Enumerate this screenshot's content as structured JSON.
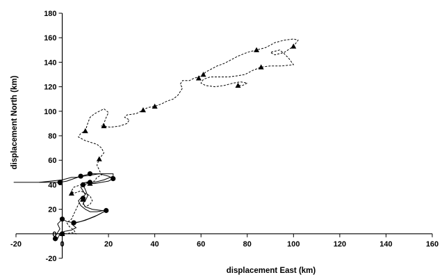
{
  "chart_data": {
    "type": "line",
    "xlabel": "displacement East (km)",
    "ylabel": "displacement  North  (km)",
    "xlim": [
      -20,
      160
    ],
    "ylim": [
      -20,
      180
    ],
    "x_ticks": [
      -20,
      0,
      20,
      40,
      60,
      80,
      100,
      120,
      140,
      160
    ],
    "y_ticks": [
      -20,
      0,
      20,
      40,
      60,
      80,
      100,
      120,
      140,
      160,
      180
    ],
    "x_tick_labels": [
      "-20",
      "0",
      "20",
      "40",
      "60",
      "80",
      "100",
      "120",
      "140",
      "160"
    ],
    "y_tick_labels": [
      "-20",
      "0",
      "20",
      "40",
      "60",
      "80",
      "100",
      "120",
      "140",
      "160",
      "180"
    ],
    "grid": false,
    "legend": "none",
    "series": [
      {
        "line_style": "dashed",
        "marker": "triangle",
        "color": "#000000",
        "points": [
          [
            -2,
            0
          ],
          [
            0,
            0
          ],
          [
            2,
            0
          ],
          [
            4,
            1
          ],
          [
            6,
            0
          ],
          [
            5,
            3
          ],
          [
            3,
            6
          ],
          [
            2,
            9
          ],
          [
            4,
            12
          ],
          [
            5,
            16
          ],
          [
            6,
            20
          ],
          [
            7,
            24
          ],
          [
            8,
            27
          ],
          [
            9,
            29
          ],
          [
            10,
            28
          ],
          [
            9,
            24
          ],
          [
            10,
            22
          ],
          [
            12,
            24
          ],
          [
            13,
            27
          ],
          [
            12,
            31
          ],
          [
            10,
            33
          ],
          [
            8,
            35
          ],
          [
            5,
            33
          ],
          [
            4,
            35
          ],
          [
            5,
            38
          ],
          [
            8,
            40
          ],
          [
            10,
            42
          ],
          [
            14,
            43
          ],
          [
            15,
            46
          ],
          [
            17,
            48
          ],
          [
            16,
            52
          ],
          [
            15,
            56
          ],
          [
            16,
            61
          ],
          [
            18,
            66
          ],
          [
            17,
            70
          ],
          [
            15,
            73
          ],
          [
            10,
            76
          ],
          [
            7,
            79
          ],
          [
            8,
            82
          ],
          [
            10,
            84
          ],
          [
            11,
            90
          ],
          [
            12,
            95
          ],
          [
            14,
            98
          ],
          [
            16,
            100
          ],
          [
            18,
            102
          ],
          [
            20,
            99
          ],
          [
            19,
            95
          ],
          [
            18,
            90
          ],
          [
            17,
            88
          ],
          [
            21,
            87
          ],
          [
            25,
            88
          ],
          [
            28,
            90
          ],
          [
            29,
            93
          ],
          [
            27,
            95
          ],
          [
            28,
            97
          ],
          [
            32,
            98
          ],
          [
            35,
            101
          ],
          [
            37,
            103
          ],
          [
            40,
            104
          ],
          [
            43,
            106
          ],
          [
            45,
            108
          ],
          [
            48,
            110
          ],
          [
            50,
            113
          ],
          [
            51,
            116
          ],
          [
            52,
            119
          ],
          [
            51,
            122
          ],
          [
            52,
            125
          ],
          [
            55,
            125
          ],
          [
            57,
            127
          ],
          [
            59,
            128
          ],
          [
            61,
            130
          ],
          [
            62,
            132
          ],
          [
            64,
            134
          ],
          [
            67,
            137
          ],
          [
            70,
            139
          ],
          [
            73,
            142
          ],
          [
            76,
            145
          ],
          [
            80,
            148
          ],
          [
            84,
            150
          ],
          [
            88,
            152
          ],
          [
            92,
            156
          ],
          [
            96,
            158
          ],
          [
            100,
            159
          ],
          [
            102,
            158
          ],
          [
            100,
            153
          ],
          [
            96,
            148
          ],
          [
            92,
            146
          ],
          [
            90,
            148
          ],
          [
            94,
            150
          ],
          [
            96,
            147
          ],
          [
            98,
            143
          ],
          [
            100,
            138
          ],
          [
            95,
            137
          ],
          [
            90,
            137
          ],
          [
            86,
            136
          ],
          [
            82,
            133
          ],
          [
            79,
            130
          ],
          [
            76,
            129
          ],
          [
            72,
            128
          ],
          [
            68,
            128
          ],
          [
            64,
            128
          ],
          [
            61,
            126
          ],
          [
            60,
            123
          ],
          [
            62,
            121
          ],
          [
            66,
            120
          ],
          [
            70,
            121
          ],
          [
            74,
            123
          ],
          [
            77,
            124
          ],
          [
            80,
            123
          ],
          [
            78,
            121
          ],
          [
            76,
            121
          ]
        ]
      },
      {
        "line_style": "solid",
        "marker": "circle",
        "color": "#000000",
        "points": [
          [
            -21,
            42
          ],
          [
            -10,
            42
          ],
          [
            -1,
            42
          ],
          [
            2,
            43
          ],
          [
            5,
            45
          ],
          [
            8,
            47
          ],
          [
            12,
            49
          ],
          [
            16,
            49
          ],
          [
            18,
            48
          ],
          [
            20,
            47
          ],
          [
            22,
            45
          ],
          [
            20,
            43
          ],
          [
            17,
            42
          ],
          [
            14,
            41
          ],
          [
            12,
            41
          ],
          [
            10,
            42
          ],
          [
            9,
            40
          ],
          [
            8,
            38
          ],
          [
            9,
            35
          ],
          [
            10,
            32
          ],
          [
            8,
            29
          ],
          [
            7,
            27
          ],
          [
            8,
            23
          ],
          [
            10,
            20
          ],
          [
            12,
            18
          ],
          [
            15,
            18
          ],
          [
            18,
            19
          ],
          [
            19,
            19
          ],
          [
            15,
            15
          ],
          [
            11,
            12
          ],
          [
            8,
            10
          ],
          [
            5,
            9
          ],
          [
            2,
            10
          ],
          [
            0,
            12
          ],
          [
            -2,
            8
          ],
          [
            -1,
            4
          ],
          [
            -2,
            1
          ],
          [
            -3,
            -2
          ]
        ]
      },
      {
        "line_style": "solid",
        "marker": "circle",
        "color": "#000000",
        "points": [
          [
            -10,
            42
          ],
          [
            0,
            44
          ],
          [
            4,
            46
          ],
          [
            6,
            46
          ],
          [
            9,
            47
          ],
          [
            13,
            48
          ],
          [
            16,
            49
          ],
          [
            22,
            49
          ],
          [
            22,
            47
          ],
          [
            18,
            44
          ],
          [
            14,
            42
          ],
          [
            11,
            41
          ],
          [
            9,
            40
          ],
          [
            10,
            36
          ],
          [
            11,
            31
          ],
          [
            10,
            27
          ],
          [
            9,
            25
          ],
          [
            10,
            22
          ],
          [
            13,
            20
          ],
          [
            17,
            19
          ],
          [
            19,
            19
          ],
          [
            14,
            14
          ],
          [
            10,
            11
          ],
          [
            6,
            9
          ],
          [
            4,
            8
          ],
          [
            6,
            5
          ],
          [
            4,
            3
          ],
          [
            1,
            2
          ],
          [
            -1,
            0
          ],
          [
            -2,
            -4
          ]
        ]
      }
    ],
    "marker_points": {
      "triangles": [
        [
          0,
          0
        ],
        [
          9,
          28
        ],
        [
          12,
          41
        ],
        [
          4,
          33
        ],
        [
          16,
          61
        ],
        [
          10,
          84
        ],
        [
          18,
          88
        ],
        [
          35,
          101
        ],
        [
          40,
          104
        ],
        [
          59,
          127
        ],
        [
          61,
          130
        ],
        [
          76,
          121
        ],
        [
          84,
          150
        ],
        [
          86,
          136
        ],
        [
          100,
          153
        ]
      ],
      "circles": [
        [
          -1,
          42
        ],
        [
          8,
          47
        ],
        [
          12,
          49
        ],
        [
          22,
          45
        ],
        [
          12,
          42
        ],
        [
          9,
          40
        ],
        [
          9,
          29
        ],
        [
          19,
          19
        ],
        [
          0,
          12
        ],
        [
          5,
          9
        ],
        [
          -3,
          -4
        ],
        [
          0,
          0
        ]
      ]
    }
  }
}
